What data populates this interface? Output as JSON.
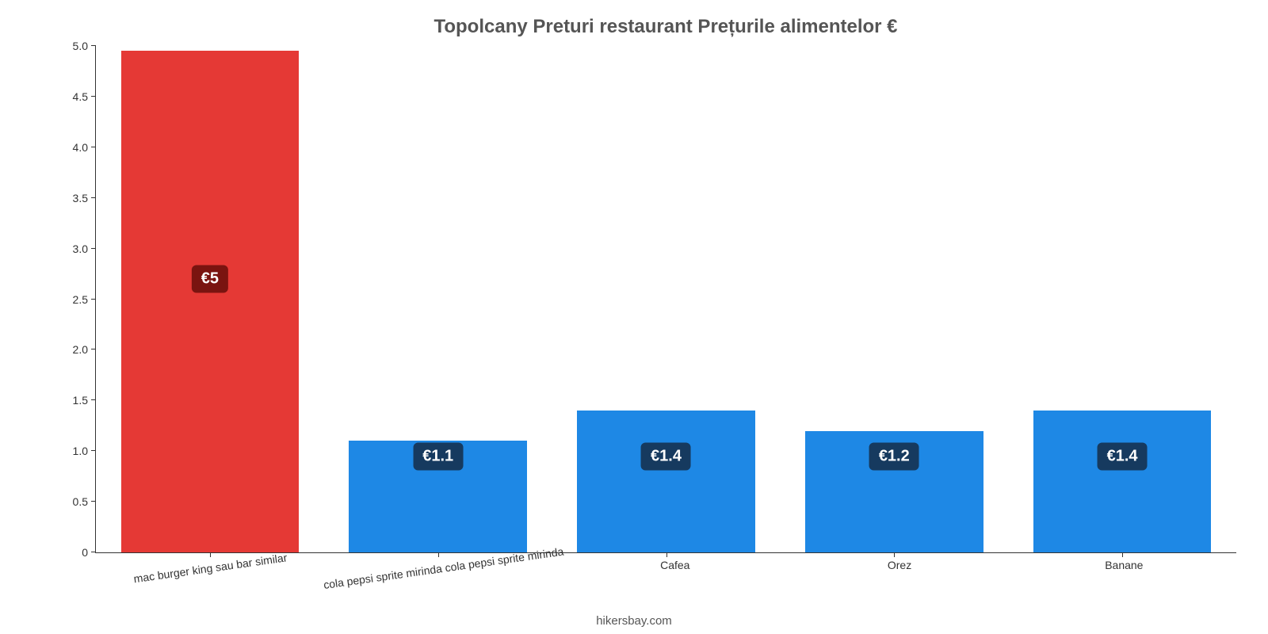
{
  "chart": {
    "type": "bar",
    "title": "Topolcany Preturi restaurant Prețurile alimentelor €",
    "title_fontsize": 24,
    "title_color": "#555555",
    "footer": "hikersbay.com",
    "footer_color": "#555555",
    "background_color": "#ffffff",
    "axis_color": "#333333",
    "ylim": [
      0,
      5.0
    ],
    "yticks": [
      0,
      0.5,
      1.0,
      1.5,
      2.0,
      2.5,
      3.0,
      3.5,
      4.0,
      4.5,
      5.0
    ],
    "ytick_labels": [
      "0",
      "0.5",
      "1.0",
      "1.5",
      "2.0",
      "2.5",
      "3.0",
      "3.5",
      "4.0",
      "4.5",
      "5.0"
    ],
    "ytick_fontsize": 14,
    "xlabel_fontsize": 14,
    "bar_width_pct": 78,
    "value_label_fontsize": 20,
    "value_label_radius": 6,
    "categories": [
      "mac burger king sau bar similar",
      "cola pepsi sprite mirinda cola pepsi sprite mirinda",
      "Cafea",
      "Orez",
      "Banane"
    ],
    "category_rotated": [
      true,
      true,
      false,
      false,
      false
    ],
    "values": [
      4.95,
      1.1,
      1.4,
      1.2,
      1.4
    ],
    "value_labels": [
      "€5",
      "€1.1",
      "€1.4",
      "€1.2",
      "€1.4"
    ],
    "bar_colors": [
      "#e53935",
      "#1e88e5",
      "#1e88e5",
      "#1e88e5",
      "#1e88e5"
    ],
    "value_label_bg": [
      "#7a1410",
      "#163a5f",
      "#163a5f",
      "#163a5f",
      "#163a5f"
    ],
    "value_label_color": "#ffffff"
  }
}
